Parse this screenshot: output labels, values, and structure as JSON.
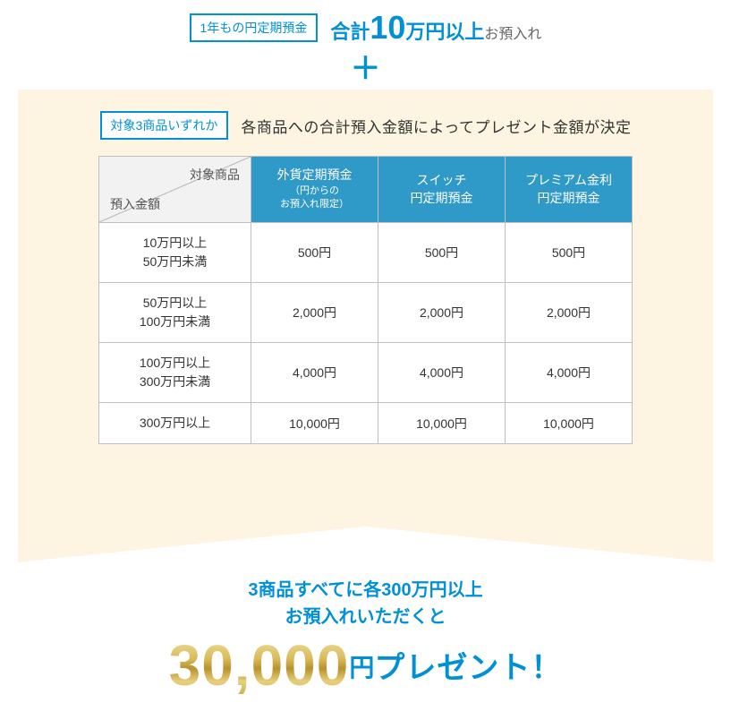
{
  "top": {
    "tag": "1年もの円定期預金",
    "headline_pre": "合計",
    "headline_num": "10",
    "headline_unit": "万円以上",
    "headline_post": "お預入れ",
    "plus": "＋"
  },
  "panel": {
    "tag": "対象3商品いずれか",
    "subtext": "各商品への合計預入金額によってプレゼント金額が決定"
  },
  "table": {
    "corner_top": "対象商品",
    "corner_bottom": "預入金額",
    "cols": [
      {
        "line1": "外貨定期預金",
        "small1": "円からの",
        "small2": "お預入れ限定"
      },
      {
        "line1": "スイッチ",
        "line2": "円定期預金"
      },
      {
        "line1": "プレミアム金利",
        "line2": "円定期預金"
      }
    ],
    "rows": [
      {
        "label1": "10万円以上",
        "label2": "50万円未満",
        "v": [
          "500円",
          "500円",
          "500円"
        ]
      },
      {
        "label1": "50万円以上",
        "label2": "100万円未満",
        "v": [
          "2,000円",
          "2,000円",
          "2,000円"
        ]
      },
      {
        "label1": "100万円以上",
        "label2": "300万円未満",
        "v": [
          "4,000円",
          "4,000円",
          "4,000円"
        ]
      },
      {
        "label1": "300万円以上",
        "label2": "",
        "v": [
          "10,000円",
          "10,000円",
          "10,000円"
        ]
      }
    ]
  },
  "bottom": {
    "lead1": "3商品すべてに各300万円以上",
    "lead2": "お預入れいただくと",
    "amount": "30,000",
    "yen": "円",
    "present": "プレゼント！"
  }
}
